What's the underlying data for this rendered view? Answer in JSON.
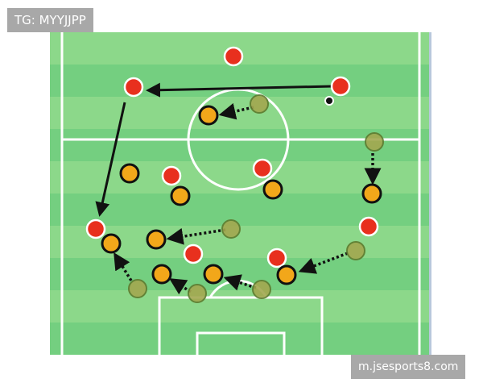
{
  "watermarks": {
    "top_left": "TG: MYYJJPP",
    "bottom_right": "m.jsesports8.com"
  },
  "colors": {
    "pitch_light": "#8cd88a",
    "pitch_dark": "#74cf80",
    "lines": "#ffffff",
    "team_red": "#e8301e",
    "team_orange": "#f2a71a",
    "team_olive_ghost": "#a3a850",
    "arrow": "#111111"
  },
  "legend_counts": {
    "red_players": 9,
    "orange_players": 10,
    "previous_positions": 7
  }
}
